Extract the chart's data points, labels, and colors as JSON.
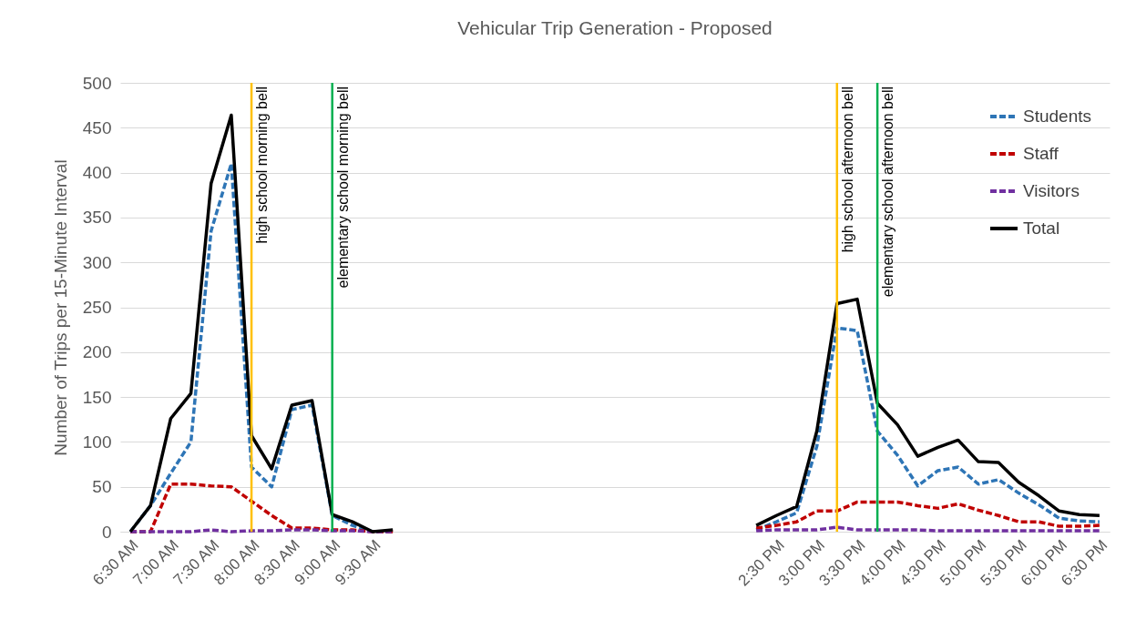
{
  "chart_data": {
    "type": "line",
    "title": "Vehicular Trip Generation - Proposed",
    "ylabel": "Number of Trips per 15-Minute Interval",
    "x": [
      6.5,
      6.75,
      7,
      7.25,
      7.5,
      7.75,
      8,
      8.25,
      8.5,
      8.75,
      9,
      9.25,
      9.5,
      9.75,
      12,
      14.25,
      14.5,
      14.75,
      15,
      15.25,
      15.5,
      15.75,
      16,
      16.25,
      16.5,
      16.75,
      17,
      17.25,
      17.5,
      17.75,
      18,
      18.25,
      18.5
    ],
    "series": [
      {
        "name": "Students",
        "color": "#2e75b6",
        "line_style": "dashed",
        "values": [
          0,
          29,
          65,
          100,
          335,
          410,
          72,
          50,
          136,
          141,
          18,
          7,
          0,
          0,
          null,
          2,
          11,
          21,
          95,
          227,
          224,
          112,
          85,
          51,
          68,
          72,
          53,
          58,
          43,
          30,
          15,
          12,
          11
        ]
      },
      {
        "name": "Staff",
        "color": "#c00000",
        "line_style": "dashed",
        "values": [
          0,
          0,
          53,
          53,
          51,
          50,
          34,
          18,
          4,
          4,
          2,
          2,
          0,
          0,
          null,
          4,
          7,
          11,
          23,
          23,
          33,
          33,
          33,
          29,
          26,
          31,
          24,
          18,
          11,
          11,
          6,
          6,
          7
        ]
      },
      {
        "name": "Visitors",
        "color": "#7030a0",
        "line_style": "dashed",
        "values": [
          0,
          0,
          0,
          0,
          2,
          0,
          1,
          1,
          2,
          2,
          1,
          1,
          0,
          0,
          null,
          1,
          2,
          2,
          2,
          5,
          2,
          2,
          2,
          2,
          1,
          1,
          1,
          1,
          1,
          1,
          1,
          1,
          1
        ]
      },
      {
        "name": "Total",
        "color": "#000000",
        "line_style": "solid",
        "values": [
          0,
          29,
          126,
          154,
          388,
          464,
          107,
          70,
          141,
          146,
          19,
          11,
          0,
          2,
          null,
          7,
          18,
          28,
          112,
          254,
          259,
          143,
          119,
          84,
          94,
          102,
          78,
          77,
          55,
          40,
          23,
          19,
          18
        ]
      }
    ],
    "xlim": [
      6.375,
      18.625
    ],
    "xticks": [
      {
        "value": 6.5,
        "label": "6:30 AM"
      },
      {
        "value": 7,
        "label": "7:00 AM"
      },
      {
        "value": 7.5,
        "label": "7:30 AM"
      },
      {
        "value": 8,
        "label": "8:00 AM"
      },
      {
        "value": 8.5,
        "label": "8:30 AM"
      },
      {
        "value": 9,
        "label": "9:00 AM"
      },
      {
        "value": 9.5,
        "label": "9:30 AM"
      },
      {
        "value": 14.5,
        "label": "2:30 PM"
      },
      {
        "value": 15,
        "label": "3:00 PM"
      },
      {
        "value": 15.5,
        "label": "3:30 PM"
      },
      {
        "value": 16,
        "label": "4:00 PM"
      },
      {
        "value": 16.5,
        "label": "4:30 PM"
      },
      {
        "value": 17,
        "label": "5:00 PM"
      },
      {
        "value": 17.5,
        "label": "5:30 PM"
      },
      {
        "value": 18,
        "label": "6:00 PM"
      },
      {
        "value": 18.5,
        "label": "6:30 PM"
      }
    ],
    "ylim": [
      0,
      500
    ],
    "yticks": [
      0,
      50,
      100,
      150,
      200,
      250,
      300,
      350,
      400,
      450,
      500
    ],
    "grid": "y",
    "legend": "top right",
    "ref_lines": [
      {
        "axis": "x",
        "value": 8,
        "label": "high school morning bell",
        "color": "#ffc000"
      },
      {
        "axis": "x",
        "value": 9,
        "label": "elementary school morning bell",
        "color": "#00b050"
      },
      {
        "axis": "x",
        "value": 15.25,
        "label": "high school afternoon bell",
        "color": "#ffc000"
      },
      {
        "axis": "x",
        "value": 15.75,
        "label": "elementary school afternoon bell",
        "color": "#00b050"
      }
    ]
  }
}
